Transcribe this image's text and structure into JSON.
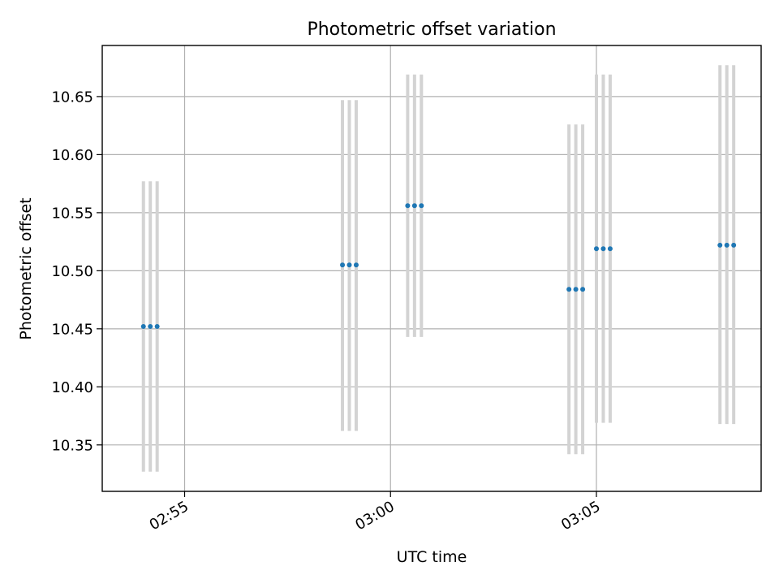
{
  "chart_data": {
    "type": "scatter",
    "title": "Photometric offset variation",
    "xlabel": "UTC time",
    "ylabel": "Photometric offset",
    "xlim": [
      "02:53:00",
      "03:09:00"
    ],
    "ylim": [
      10.31,
      10.694
    ],
    "grid": true,
    "x_ticks": [
      "02:55",
      "03:00",
      "03:05"
    ],
    "y_ticks": [
      "10.35",
      "10.40",
      "10.45",
      "10.50",
      "10.55",
      "10.60",
      "10.65"
    ],
    "series": [
      {
        "points": [
          {
            "x": "02:54:00",
            "y": 10.452,
            "ylow": 10.327,
            "yhigh": 10.577
          },
          {
            "x": "02:54:10",
            "y": 10.452,
            "ylow": 10.327,
            "yhigh": 10.577
          },
          {
            "x": "02:54:20",
            "y": 10.452,
            "ylow": 10.327,
            "yhigh": 10.577
          },
          {
            "x": "02:58:50",
            "y": 10.505,
            "ylow": 10.362,
            "yhigh": 10.647
          },
          {
            "x": "02:59:00",
            "y": 10.505,
            "ylow": 10.362,
            "yhigh": 10.647
          },
          {
            "x": "02:59:10",
            "y": 10.505,
            "ylow": 10.362,
            "yhigh": 10.647
          },
          {
            "x": "03:00:25",
            "y": 10.556,
            "ylow": 10.443,
            "yhigh": 10.669
          },
          {
            "x": "03:00:35",
            "y": 10.556,
            "ylow": 10.443,
            "yhigh": 10.669
          },
          {
            "x": "03:00:45",
            "y": 10.556,
            "ylow": 10.443,
            "yhigh": 10.669
          },
          {
            "x": "03:04:20",
            "y": 10.484,
            "ylow": 10.342,
            "yhigh": 10.626
          },
          {
            "x": "03:04:30",
            "y": 10.484,
            "ylow": 10.342,
            "yhigh": 10.626
          },
          {
            "x": "03:04:40",
            "y": 10.484,
            "ylow": 10.342,
            "yhigh": 10.626
          },
          {
            "x": "03:05:00",
            "y": 10.519,
            "ylow": 10.369,
            "yhigh": 10.669
          },
          {
            "x": "03:05:10",
            "y": 10.519,
            "ylow": 10.369,
            "yhigh": 10.669
          },
          {
            "x": "03:05:20",
            "y": 10.519,
            "ylow": 10.369,
            "yhigh": 10.669
          },
          {
            "x": "03:08:00",
            "y": 10.522,
            "ylow": 10.368,
            "yhigh": 10.677
          },
          {
            "x": "03:08:10",
            "y": 10.522,
            "ylow": 10.368,
            "yhigh": 10.677
          },
          {
            "x": "03:08:20",
            "y": 10.522,
            "ylow": 10.368,
            "yhigh": 10.677
          }
        ]
      }
    ]
  },
  "colors": {
    "point": "#1f77b4",
    "error_bar": "#d3d3d3",
    "grid": "#b0b0b0"
  }
}
